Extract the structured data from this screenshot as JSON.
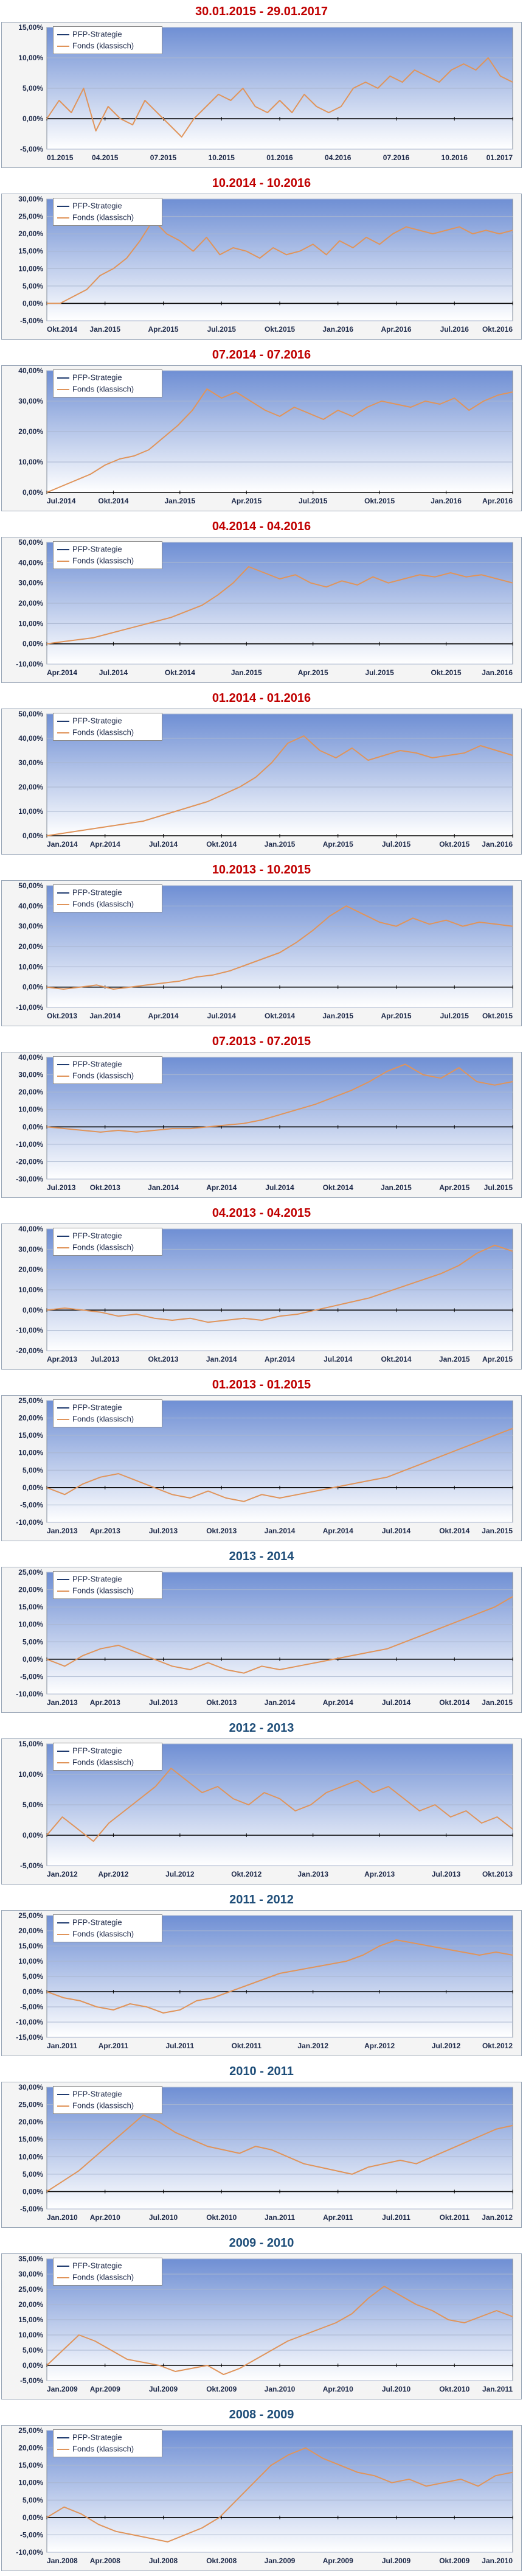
{
  "colors": {
    "title_red": "#c00000",
    "title_blue": "#1f4e79",
    "fonds_line": "#e0945a",
    "pfp_line": "#1f3b6f",
    "plot_bg_top": "#6f8fd4",
    "plot_bg_bottom": "#ffffff",
    "zero_axis": "#000000"
  },
  "legend": {
    "strategy": "PFP-Strategie",
    "fonds": "Fonds (klassisch)"
  },
  "chart_data": [
    {
      "type": "line",
      "title": "30.01.2015 - 29.01.2017",
      "title_color": "red",
      "x_labels": [
        "01.2015",
        "04.2015",
        "07.2015",
        "10.2015",
        "01.2016",
        "04.2016",
        "07.2016",
        "10.2016",
        "01.2017"
      ],
      "y_ticks": [
        "-5,00%",
        "0,00%",
        "5,00%",
        "10,00%",
        "15,00%"
      ],
      "ylim": [
        -5,
        15
      ],
      "series": [
        {
          "name": "Fonds (klassisch)",
          "values": [
            0,
            3,
            1,
            5,
            -2,
            2,
            0,
            -1,
            3,
            1,
            -1,
            -3,
            0,
            2,
            4,
            3,
            5,
            2,
            1,
            3,
            1,
            4,
            2,
            1,
            2,
            5,
            6,
            5,
            7,
            6,
            8,
            7,
            6,
            8,
            9,
            8,
            10,
            7,
            6
          ]
        }
      ]
    },
    {
      "type": "line",
      "title": "10.2014 - 10.2016",
      "title_color": "red",
      "x_labels": [
        "Okt.2014",
        "Jan.2015",
        "Apr.2015",
        "Jul.2015",
        "Okt.2015",
        "Jan.2016",
        "Apr.2016",
        "Jul.2016",
        "Okt.2016"
      ],
      "y_ticks": [
        "-5,00%",
        "0,00%",
        "5,00%",
        "10,00%",
        "15,00%",
        "20,00%",
        "25,00%",
        "30,00%"
      ],
      "ylim": [
        -5,
        30
      ],
      "series": [
        {
          "name": "Fonds (klassisch)",
          "values": [
            0,
            0,
            2,
            4,
            8,
            10,
            13,
            18,
            24,
            20,
            18,
            15,
            19,
            14,
            16,
            15,
            13,
            16,
            14,
            15,
            17,
            14,
            18,
            16,
            19,
            17,
            20,
            22,
            21,
            20,
            21,
            22,
            20,
            21,
            20,
            21
          ]
        }
      ]
    },
    {
      "type": "line",
      "title": "07.2014 - 07.2016",
      "title_color": "red",
      "x_labels": [
        "Jul.2014",
        "Okt.2014",
        "Jan.2015",
        "Apr.2015",
        "Jul.2015",
        "Okt.2015",
        "Jan.2016",
        "Apr.2016"
      ],
      "y_ticks": [
        "0,00%",
        "10,00%",
        "20,00%",
        "30,00%",
        "40,00%"
      ],
      "ylim": [
        0,
        40
      ],
      "series": [
        {
          "name": "Fonds (klassisch)",
          "values": [
            0,
            2,
            4,
            6,
            9,
            11,
            12,
            14,
            18,
            22,
            27,
            34,
            31,
            33,
            30,
            27,
            25,
            28,
            26,
            24,
            27,
            25,
            28,
            30,
            29,
            28,
            30,
            29,
            31,
            27,
            30,
            32,
            33
          ]
        }
      ]
    },
    {
      "type": "line",
      "title": "04.2014 - 04.2016",
      "title_color": "red",
      "x_labels": [
        "Apr.2014",
        "Jul.2014",
        "Okt.2014",
        "Jan.2015",
        "Apr.2015",
        "Jul.2015",
        "Okt.2015",
        "Jan.2016"
      ],
      "y_ticks": [
        "-10,00%",
        "0,00%",
        "10,00%",
        "20,00%",
        "30,00%",
        "40,00%",
        "50,00%"
      ],
      "ylim": [
        -10,
        50
      ],
      "series": [
        {
          "name": "Fonds (klassisch)",
          "values": [
            0,
            1,
            2,
            3,
            5,
            7,
            9,
            11,
            13,
            16,
            19,
            24,
            30,
            38,
            35,
            32,
            34,
            30,
            28,
            31,
            29,
            33,
            30,
            32,
            34,
            33,
            35,
            33,
            34,
            32,
            30
          ]
        }
      ]
    },
    {
      "type": "line",
      "title": "01.2014 - 01.2016",
      "title_color": "red",
      "x_labels": [
        "Jan.2014",
        "Apr.2014",
        "Jul.2014",
        "Okt.2014",
        "Jan.2015",
        "Apr.2015",
        "Jul.2015",
        "Okt.2015",
        "Jan.2016"
      ],
      "y_ticks": [
        "0,00%",
        "10,00%",
        "20,00%",
        "30,00%",
        "40,00%",
        "50,00%"
      ],
      "ylim": [
        0,
        50
      ],
      "series": [
        {
          "name": "Fonds (klassisch)",
          "values": [
            0,
            1,
            2,
            3,
            4,
            5,
            6,
            8,
            10,
            12,
            14,
            17,
            20,
            24,
            30,
            38,
            41,
            35,
            32,
            36,
            31,
            33,
            35,
            34,
            32,
            33,
            34,
            37,
            35,
            33
          ]
        }
      ]
    },
    {
      "type": "line",
      "title": "10.2013 - 10.2015",
      "title_color": "red",
      "x_labels": [
        "Okt.2013",
        "Jan.2014",
        "Apr.2014",
        "Jul.2014",
        "Okt.2014",
        "Jan.2015",
        "Apr.2015",
        "Jul.2015",
        "Okt.2015"
      ],
      "y_ticks": [
        "-10,00%",
        "0,00%",
        "10,00%",
        "20,00%",
        "30,00%",
        "40,00%",
        "50,00%"
      ],
      "ylim": [
        -10,
        50
      ],
      "series": [
        {
          "name": "Fonds (klassisch)",
          "values": [
            0,
            -1,
            0,
            1,
            -1,
            0,
            1,
            2,
            3,
            5,
            6,
            8,
            11,
            14,
            17,
            22,
            28,
            35,
            40,
            36,
            32,
            30,
            34,
            31,
            33,
            30,
            32,
            31,
            30
          ]
        }
      ]
    },
    {
      "type": "line",
      "title": "07.2013 - 07.2015",
      "title_color": "red",
      "x_labels": [
        "Jul.2013",
        "Okt.2013",
        "Jan.2014",
        "Apr.2014",
        "Jul.2014",
        "Okt.2014",
        "Jan.2015",
        "Apr.2015",
        "Jul.2015"
      ],
      "y_ticks": [
        "-30,00%",
        "-20,00%",
        "-10,00%",
        "0,00%",
        "10,00%",
        "20,00%",
        "30,00%",
        "40,00%"
      ],
      "ylim": [
        -30,
        40
      ],
      "series": [
        {
          "name": "Fonds (klassisch)",
          "values": [
            0,
            -1,
            -2,
            -3,
            -2,
            -3,
            -2,
            -1,
            -1,
            0,
            1,
            2,
            4,
            7,
            10,
            13,
            17,
            21,
            26,
            32,
            36,
            30,
            28,
            34,
            26,
            24,
            26
          ]
        }
      ]
    },
    {
      "type": "line",
      "title": "04.2013 - 04.2015",
      "title_color": "red",
      "x_labels": [
        "Apr.2013",
        "Jul.2013",
        "Okt.2013",
        "Jan.2014",
        "Apr.2014",
        "Jul.2014",
        "Okt.2014",
        "Jan.2015",
        "Apr.2015"
      ],
      "y_ticks": [
        "-20,00%",
        "-10,00%",
        "0,00%",
        "10,00%",
        "20,00%",
        "30,00%",
        "40,00%"
      ],
      "ylim": [
        -20,
        40
      ],
      "series": [
        {
          "name": "Fonds (klassisch)",
          "values": [
            0,
            1,
            0,
            -1,
            -3,
            -2,
            -4,
            -5,
            -4,
            -6,
            -5,
            -4,
            -5,
            -3,
            -2,
            0,
            2,
            4,
            6,
            9,
            12,
            15,
            18,
            22,
            28,
            32,
            29
          ]
        }
      ]
    },
    {
      "type": "line",
      "title": "01.2013 - 01.2015",
      "title_color": "red",
      "x_labels": [
        "Jan.2013",
        "Apr.2013",
        "Jul.2013",
        "Okt.2013",
        "Jan.2014",
        "Apr.2014",
        "Jul.2014",
        "Okt.2014",
        "Jan.2015"
      ],
      "y_ticks": [
        "-10,00%",
        "-5,00%",
        "0,00%",
        "5,00%",
        "10,00%",
        "15,00%",
        "20,00%",
        "25,00%"
      ],
      "ylim": [
        -10,
        25
      ],
      "series": [
        {
          "name": "Fonds (klassisch)",
          "values": [
            0,
            -2,
            1,
            3,
            4,
            2,
            0,
            -2,
            -3,
            -1,
            -3,
            -4,
            -2,
            -3,
            -2,
            -1,
            0,
            1,
            2,
            3,
            5,
            7,
            9,
            11,
            13,
            15,
            17
          ]
        }
      ]
    },
    {
      "type": "line",
      "title": "2013 - 2014",
      "title_color": "blue",
      "x_labels": [
        "Jan.2013",
        "Apr.2013",
        "Jul.2013",
        "Okt.2013",
        "Jan.2014",
        "Apr.2014",
        "Jul.2014",
        "Okt.2014",
        "Jan.2015"
      ],
      "y_ticks": [
        "-10,00%",
        "-5,00%",
        "0,00%",
        "5,00%",
        "10,00%",
        "15,00%",
        "20,00%",
        "25,00%"
      ],
      "ylim": [
        -10,
        25
      ],
      "series": [
        {
          "name": "Fonds (klassisch)",
          "values": [
            0,
            -2,
            1,
            3,
            4,
            2,
            0,
            -2,
            -3,
            -1,
            -3,
            -4,
            -2,
            -3,
            -2,
            -1,
            0,
            1,
            2,
            3,
            5,
            7,
            9,
            11,
            13,
            15,
            18
          ]
        }
      ]
    },
    {
      "type": "line",
      "title": "2012 - 2013",
      "title_color": "blue",
      "x_labels": [
        "Jan.2012",
        "Apr.2012",
        "Jul.2012",
        "Okt.2012",
        "Jan.2013",
        "Apr.2013",
        "Jul.2013",
        "Okt.2013"
      ],
      "y_ticks": [
        "-5,00%",
        "0,00%",
        "5,00%",
        "10,00%",
        "15,00%"
      ],
      "ylim": [
        -5,
        15
      ],
      "series": [
        {
          "name": "Fonds (klassisch)",
          "values": [
            0,
            3,
            1,
            -1,
            2,
            4,
            6,
            8,
            11,
            9,
            7,
            8,
            6,
            5,
            7,
            6,
            4,
            5,
            7,
            8,
            9,
            7,
            8,
            6,
            4,
            5,
            3,
            4,
            2,
            3,
            1
          ]
        }
      ]
    },
    {
      "type": "line",
      "title": "2011 - 2012",
      "title_color": "blue",
      "x_labels": [
        "Jan.2011",
        "Apr.2011",
        "Jul.2011",
        "Okt.2011",
        "Jan.2012",
        "Apr.2012",
        "Jul.2012",
        "Okt.2012"
      ],
      "y_ticks": [
        "-15,00%",
        "-10,00%",
        "-5,00%",
        "0,00%",
        "5,00%",
        "10,00%",
        "15,00%",
        "20,00%",
        "25,00%"
      ],
      "ylim": [
        -15,
        25
      ],
      "series": [
        {
          "name": "Fonds (klassisch)",
          "values": [
            0,
            -2,
            -3,
            -5,
            -6,
            -4,
            -5,
            -7,
            -6,
            -3,
            -2,
            0,
            2,
            4,
            6,
            7,
            8,
            9,
            10,
            12,
            15,
            17,
            16,
            15,
            14,
            13,
            12,
            13,
            12
          ]
        }
      ]
    },
    {
      "type": "line",
      "title": "2010 - 2011",
      "title_color": "blue",
      "x_labels": [
        "Jan.2010",
        "Apr.2010",
        "Jul.2010",
        "Okt.2010",
        "Jan.2011",
        "Apr.2011",
        "Jul.2011",
        "Okt.2011",
        "Jan.2012"
      ],
      "y_ticks": [
        "-5,00%",
        "0,00%",
        "5,00%",
        "10,00%",
        "15,00%",
        "20,00%",
        "25,00%",
        "30,00%"
      ],
      "ylim": [
        -5,
        30
      ],
      "series": [
        {
          "name": "Fonds (klassisch)",
          "values": [
            0,
            3,
            6,
            10,
            14,
            18,
            22,
            20,
            17,
            15,
            13,
            12,
            11,
            13,
            12,
            10,
            8,
            7,
            6,
            5,
            7,
            8,
            9,
            8,
            10,
            12,
            14,
            16,
            18,
            19
          ]
        }
      ]
    },
    {
      "type": "line",
      "title": "2009 - 2010",
      "title_color": "blue",
      "x_labels": [
        "Jan.2009",
        "Apr.2009",
        "Jul.2009",
        "Okt.2009",
        "Jan.2010",
        "Apr.2010",
        "Jul.2010",
        "Okt.2010",
        "Jan.2011"
      ],
      "y_ticks": [
        "-5,00%",
        "0,00%",
        "5,00%",
        "10,00%",
        "15,00%",
        "20,00%",
        "25,00%",
        "30,00%",
        "35,00%"
      ],
      "ylim": [
        -5,
        35
      ],
      "series": [
        {
          "name": "Fonds (klassisch)",
          "values": [
            0,
            5,
            10,
            8,
            5,
            2,
            1,
            0,
            -2,
            -1,
            0,
            -3,
            -1,
            2,
            5,
            8,
            10,
            12,
            14,
            17,
            22,
            26,
            23,
            20,
            18,
            15,
            14,
            16,
            18,
            16
          ]
        }
      ]
    },
    {
      "type": "line",
      "title": "2008 - 2009",
      "title_color": "blue",
      "x_labels": [
        "Jan.2008",
        "Apr.2008",
        "Jul.2008",
        "Okt.2008",
        "Jan.2009",
        "Apr.2009",
        "Jul.2009",
        "Okt.2009",
        "Jan.2010"
      ],
      "y_ticks": [
        "-10,00%",
        "-5,00%",
        "0,00%",
        "5,00%",
        "10,00%",
        "15,00%",
        "20,00%",
        "25,00%"
      ],
      "ylim": [
        -10,
        25
      ],
      "series": [
        {
          "name": "Fonds (klassisch)",
          "values": [
            0,
            3,
            1,
            -2,
            -4,
            -5,
            -6,
            -7,
            -5,
            -3,
            0,
            5,
            10,
            15,
            18,
            20,
            17,
            15,
            13,
            12,
            10,
            11,
            9,
            10,
            11,
            9,
            12,
            13
          ]
        }
      ]
    }
  ]
}
